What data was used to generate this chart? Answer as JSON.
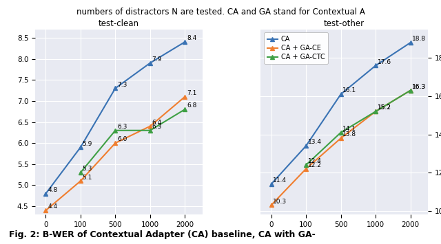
{
  "test_clean": {
    "CA": {
      "x": [
        0,
        1,
        2,
        3,
        4
      ],
      "y": [
        4.8,
        5.9,
        7.3,
        7.9,
        8.4
      ]
    },
    "CA_GA_CE": {
      "x": [
        0,
        1,
        2,
        3,
        4
      ],
      "y": [
        4.4,
        5.1,
        6.0,
        6.4,
        7.1
      ]
    },
    "CA_GA_CTC": {
      "x": [
        1,
        2,
        3,
        4
      ],
      "y": [
        5.3,
        6.3,
        6.3,
        6.8
      ]
    }
  },
  "test_other": {
    "CA": {
      "x": [
        0,
        1,
        2,
        3,
        4
      ],
      "y": [
        11.4,
        13.4,
        16.1,
        17.6,
        18.8
      ]
    },
    "CA_GA_CE": {
      "x": [
        0,
        1,
        2,
        3,
        4
      ],
      "y": [
        10.3,
        12.2,
        13.8,
        15.2,
        16.3
      ]
    },
    "CA_GA_CTC": {
      "x": [
        1,
        2,
        3,
        4
      ],
      "y": [
        12.4,
        14.1,
        15.2,
        16.3
      ]
    }
  },
  "annotations_clean": {
    "CA": [
      [
        0,
        4.8,
        "4.8"
      ],
      [
        1,
        5.9,
        "5.9"
      ],
      [
        2,
        7.3,
        "7.3"
      ],
      [
        3,
        7.9,
        "7.9"
      ],
      [
        4,
        8.4,
        "8.4"
      ]
    ],
    "CA_GA_CE": [
      [
        0,
        4.4,
        "4.4"
      ],
      [
        1,
        5.1,
        "5.1"
      ],
      [
        2,
        6.0,
        "6.0"
      ],
      [
        3,
        6.4,
        "6.4"
      ],
      [
        4,
        7.1,
        "7.1"
      ]
    ],
    "CA_GA_CTC": [
      [
        1,
        5.3,
        "5.3"
      ],
      [
        2,
        6.3,
        "6.3"
      ],
      [
        3,
        6.3,
        "6.3"
      ],
      [
        4,
        6.8,
        "6.8"
      ]
    ]
  },
  "annotations_other": {
    "CA": [
      [
        0,
        11.4,
        "11.4"
      ],
      [
        1,
        13.4,
        "13.4"
      ],
      [
        2,
        16.1,
        "16.1"
      ],
      [
        3,
        17.6,
        "17.6"
      ],
      [
        4,
        18.8,
        "18.8"
      ]
    ],
    "CA_GA_CE": [
      [
        0,
        10.3,
        "10.3"
      ],
      [
        1,
        12.2,
        "12.2"
      ],
      [
        2,
        13.8,
        "13.8"
      ],
      [
        3,
        15.2,
        "15.2"
      ],
      [
        4,
        16.3,
        "16.3"
      ]
    ],
    "CA_GA_CTC": [
      [
        1,
        12.4,
        "12.4"
      ],
      [
        2,
        14.1,
        "14.1"
      ],
      [
        3,
        15.2,
        "15.2"
      ],
      [
        4,
        16.3,
        "16.3"
      ]
    ]
  },
  "labels": {
    "CA": "CA",
    "CA_GA_CE": "CA + GA-CE",
    "CA_GA_CTC": "CA + GA-CTC"
  },
  "colors": {
    "CA": "#3a73b4",
    "CA_GA_CE": "#f07e2f",
    "CA_GA_CTC": "#3fa045"
  },
  "title_clean": "test-clean",
  "title_other": "test-other",
  "xtick_labels": [
    "0",
    "100",
    "500",
    "1000",
    "2000"
  ],
  "xlim": [
    -0.3,
    4.5
  ],
  "ylim_clean": [
    4.3,
    8.7
  ],
  "yticks_clean": [
    4.5,
    5.0,
    5.5,
    6.0,
    6.5,
    7.0,
    7.5,
    8.0,
    8.5
  ],
  "ylim_other": [
    9.8,
    19.5
  ],
  "yticks_other": [
    10,
    12,
    14,
    16,
    18
  ],
  "background_color": "#e8eaf2",
  "annotation_fontsize": 6.5,
  "marker": "^",
  "markersize": 4,
  "linewidth": 1.5,
  "top_text": "numbers of distractors N are tested. CA and GA stand for Contextual A",
  "bottom_text": "Fig. 2: B-WER of Contextual Adapter (CA) baseline, CA with GA-"
}
